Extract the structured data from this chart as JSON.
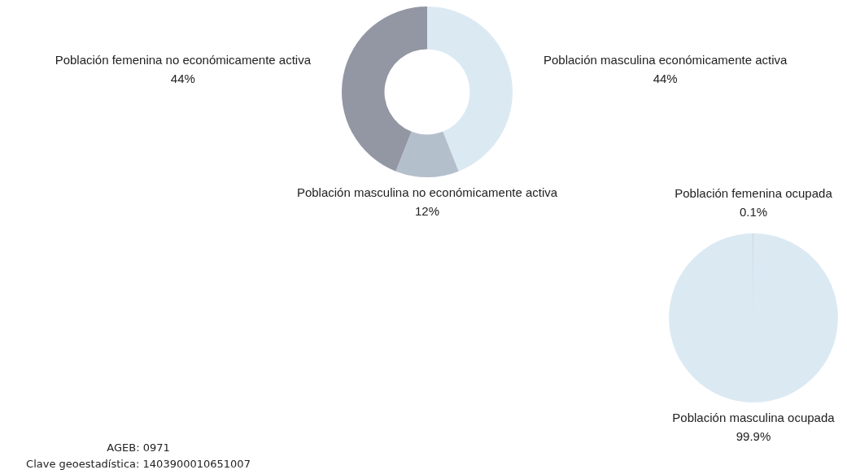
{
  "chart_data": [
    {
      "type": "donut",
      "categories": [
        "Población masculina económicamente activa",
        "Población masculina no económicamente activa",
        "Población femenina no económicamente activa"
      ],
      "values": [
        44,
        12,
        44
      ],
      "value_labels": [
        "44%",
        "12%",
        "44%"
      ],
      "colors": [
        "#dbe9f3",
        "#b4bfcc",
        "#9396a3"
      ],
      "legend": false,
      "annotations": [
        "AGEB: 0971",
        "Clave geoestadística: 1403900010651007"
      ]
    },
    {
      "type": "pie",
      "categories": [
        "Población masculina ocupada",
        "Población femenina ocupada"
      ],
      "values": [
        99.9,
        0.1
      ],
      "value_labels": [
        "99.9%",
        "0.1%"
      ],
      "colors": [
        "#dbe9f3",
        "#b4bfcc"
      ],
      "legend": false
    }
  ]
}
